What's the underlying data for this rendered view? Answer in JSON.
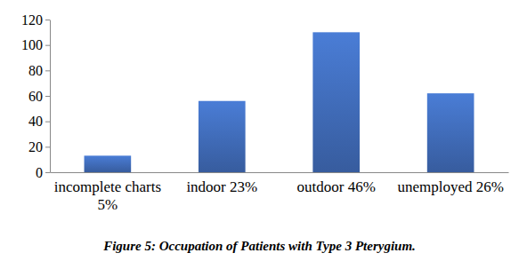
{
  "chart_data": {
    "type": "bar",
    "title": "Figure 5: Occupation of Patients with Type 3 Pterygium.",
    "categories": [
      "incomplete charts 5%",
      "indoor 23%",
      "outdoor 46%",
      "unemployed 26%"
    ],
    "values": [
      13,
      56,
      110,
      62
    ],
    "color": "#4472c4",
    "ylim": [
      0,
      120
    ],
    "yticks": [
      0,
      20,
      40,
      60,
      80,
      100,
      120
    ],
    "grid": false
  }
}
